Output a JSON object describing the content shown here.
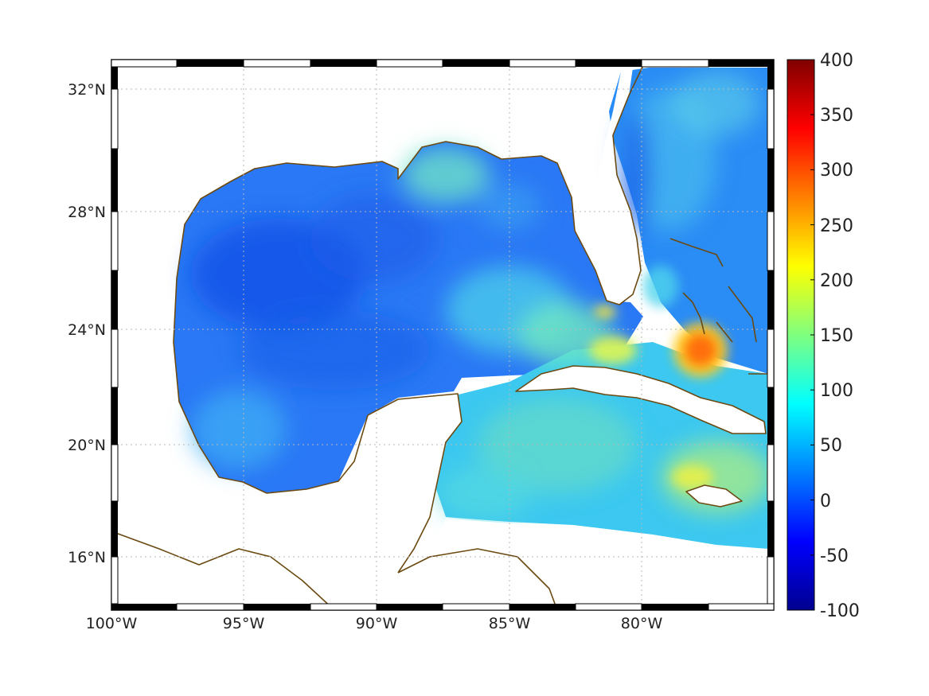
{
  "map": {
    "lon_range": [
      -100,
      -75
    ],
    "lat_range": [
      14.5,
      33
    ],
    "grid": "dotted",
    "frame": "black-white checkered"
  },
  "axes": {
    "x_ticks": [
      {
        "lon": -100,
        "label": "100°W"
      },
      {
        "lon": -95,
        "label": "95°W"
      },
      {
        "lon": -90,
        "label": "90°W"
      },
      {
        "lon": -85,
        "label": "85°W"
      },
      {
        "lon": -80,
        "label": "80°W"
      }
    ],
    "y_ticks": [
      {
        "lat": 32,
        "label": "32°N"
      },
      {
        "lat": 28,
        "label": "28°N"
      },
      {
        "lat": 24,
        "label": "24°N"
      },
      {
        "lat": 20,
        "label": "20°N"
      },
      {
        "lat": 16,
        "label": "16°N"
      }
    ]
  },
  "colorbar": {
    "min": -100,
    "max": 400,
    "colormap": "jet",
    "ticks": [
      "400",
      "350",
      "300",
      "250",
      "200",
      "150",
      "100",
      "50",
      "0",
      "-50",
      "-100"
    ]
  },
  "colors": {
    "coastline": "#6b4a12",
    "low_field": "#1e64f0",
    "high_field": "#ff3c0a"
  },
  "field_features": [
    {
      "region": "central Gulf of Mexico",
      "value": 20
    },
    {
      "region": "Straits of Florida",
      "value": 170
    },
    {
      "region": "Great Bahama Bank",
      "value": 280
    },
    {
      "region": "Caribbean south of Cuba",
      "value": 120
    },
    {
      "region": "Atlantic east of Florida",
      "value": 60
    }
  ]
}
